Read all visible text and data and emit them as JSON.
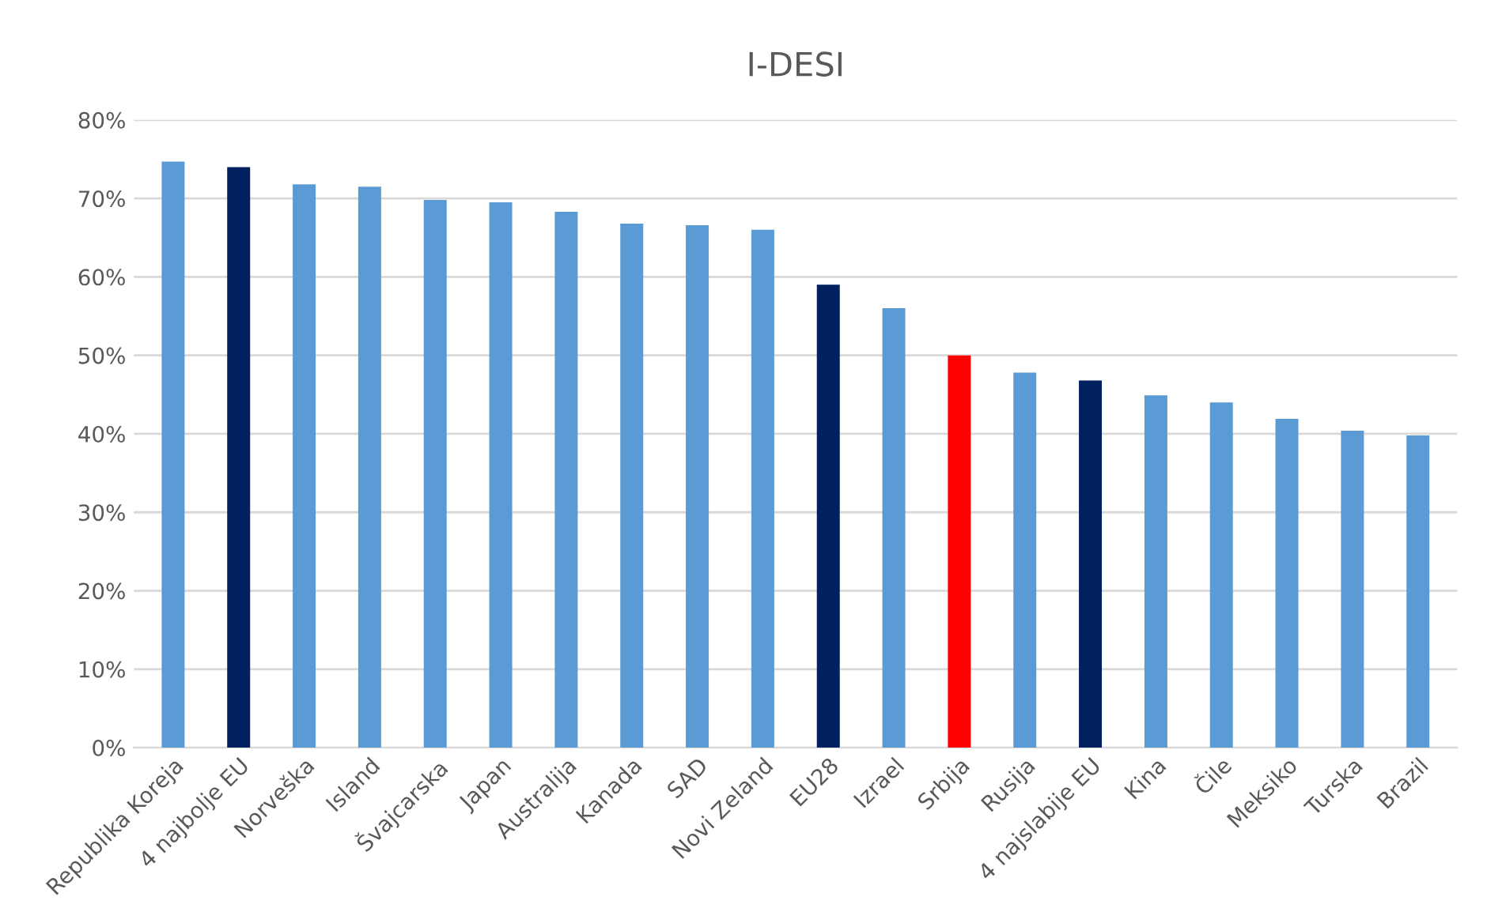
{
  "chart_data": {
    "type": "bar",
    "title": "I-DESI",
    "categories": [
      "Republika Koreja",
      "4 najbolje EU",
      "Norveška",
      "Island",
      "Švajcarska",
      "Japan",
      "Australija",
      "Kanada",
      "SAD",
      "Novi Zeland",
      "EU28",
      "Izrael",
      "Srbija",
      "Rusija",
      "4 najslabije EU",
      "Kina",
      "Čile",
      "Meksiko",
      "Turska",
      "Brazil"
    ],
    "values": [
      74.7,
      74.0,
      71.8,
      71.5,
      69.8,
      69.5,
      68.3,
      66.8,
      66.6,
      66.0,
      59.0,
      56.0,
      50.0,
      47.8,
      46.8,
      44.9,
      44.0,
      41.9,
      40.4,
      39.8
    ],
    "colors": [
      "#5b9bd5",
      "#002060",
      "#5b9bd5",
      "#5b9bd5",
      "#5b9bd5",
      "#5b9bd5",
      "#5b9bd5",
      "#5b9bd5",
      "#5b9bd5",
      "#5b9bd5",
      "#002060",
      "#5b9bd5",
      "#ff0000",
      "#5b9bd5",
      "#002060",
      "#5b9bd5",
      "#5b9bd5",
      "#5b9bd5",
      "#5b9bd5",
      "#5b9bd5"
    ],
    "ylim": [
      0,
      80
    ],
    "yticks": [
      {
        "value": 0,
        "label": "0%"
      },
      {
        "value": 10,
        "label": "10%"
      },
      {
        "value": 20,
        "label": "20%"
      },
      {
        "value": 30,
        "label": "30%"
      },
      {
        "value": 40,
        "label": "40%"
      },
      {
        "value": 50,
        "label": "50%"
      },
      {
        "value": 60,
        "label": "60%"
      },
      {
        "value": 70,
        "label": "70%"
      },
      {
        "value": 80,
        "label": "80%"
      }
    ],
    "grid": "y",
    "legend": false
  }
}
